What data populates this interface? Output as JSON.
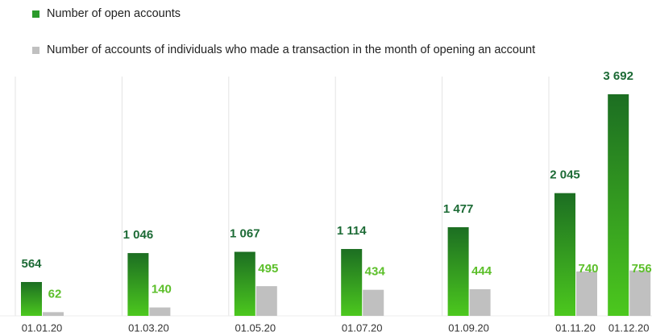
{
  "chart_data": {
    "type": "bar",
    "x": [
      "01.01.20",
      "01.03.20",
      "01.05.20",
      "01.07.20",
      "01.09.20",
      "01.11.20",
      "01.12.20"
    ],
    "series": [
      {
        "name": "Number of open accounts",
        "color": "#2a9a2a",
        "values": [
          564,
          1046,
          1067,
          1114,
          1477,
          2045,
          3692
        ],
        "value_labels": [
          "564",
          "1 046",
          "1 067",
          "1 114",
          "1 477",
          "2 045",
          "3 692"
        ]
      },
      {
        "name": "Number of accounts of individuals who made a transaction in the month of opening an account",
        "color": "#c0c0c0",
        "values": [
          62,
          140,
          495,
          434,
          444,
          740,
          756
        ],
        "value_labels": [
          "62",
          "140",
          "495",
          "434",
          "444",
          "740",
          "756"
        ]
      }
    ]
  }
}
